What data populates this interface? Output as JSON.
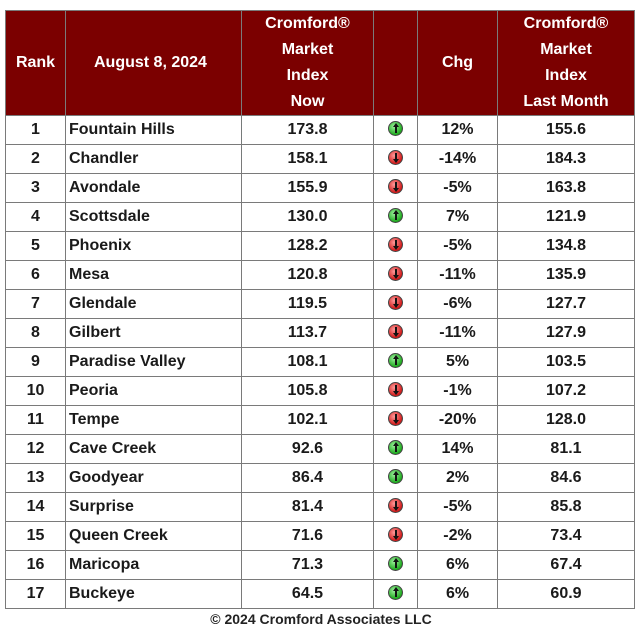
{
  "header": {
    "rank": "Rank",
    "date": "August 8, 2024",
    "now_lines": [
      "Cromford®",
      "Market",
      "Index",
      "Now"
    ],
    "chg": "Chg",
    "last_lines": [
      "Cromford®",
      "Market",
      "Index",
      "Last Month"
    ]
  },
  "rows": [
    {
      "rank": "1",
      "city": "Fountain Hills",
      "now": "173.8",
      "dir": "up",
      "chg": "12%",
      "last": "155.6"
    },
    {
      "rank": "2",
      "city": "Chandler",
      "now": "158.1",
      "dir": "down",
      "chg": "-14%",
      "last": "184.3"
    },
    {
      "rank": "3",
      "city": "Avondale",
      "now": "155.9",
      "dir": "down",
      "chg": "-5%",
      "last": "163.8"
    },
    {
      "rank": "4",
      "city": "Scottsdale",
      "now": "130.0",
      "dir": "up",
      "chg": "7%",
      "last": "121.9"
    },
    {
      "rank": "5",
      "city": "Phoenix",
      "now": "128.2",
      "dir": "down",
      "chg": "-5%",
      "last": "134.8"
    },
    {
      "rank": "6",
      "city": "Mesa",
      "now": "120.8",
      "dir": "down",
      "chg": "-11%",
      "last": "135.9"
    },
    {
      "rank": "7",
      "city": "Glendale",
      "now": "119.5",
      "dir": "down",
      "chg": "-6%",
      "last": "127.7"
    },
    {
      "rank": "8",
      "city": "Gilbert",
      "now": "113.7",
      "dir": "down",
      "chg": "-11%",
      "last": "127.9"
    },
    {
      "rank": "9",
      "city": "Paradise Valley",
      "now": "108.1",
      "dir": "up",
      "chg": "5%",
      "last": "103.5"
    },
    {
      "rank": "10",
      "city": "Peoria",
      "now": "105.8",
      "dir": "down",
      "chg": "-1%",
      "last": "107.2"
    },
    {
      "rank": "11",
      "city": "Tempe",
      "now": "102.1",
      "dir": "down",
      "chg": "-20%",
      "last": "128.0"
    },
    {
      "rank": "12",
      "city": "Cave Creek",
      "now": "92.6",
      "dir": "up",
      "chg": "14%",
      "last": "81.1"
    },
    {
      "rank": "13",
      "city": "Goodyear",
      "now": "86.4",
      "dir": "up",
      "chg": "2%",
      "last": "84.6"
    },
    {
      "rank": "14",
      "city": "Surprise",
      "now": "81.4",
      "dir": "down",
      "chg": "-5%",
      "last": "85.8"
    },
    {
      "rank": "15",
      "city": "Queen Creek",
      "now": "71.6",
      "dir": "down",
      "chg": "-2%",
      "last": "73.4"
    },
    {
      "rank": "16",
      "city": "Maricopa",
      "now": "71.3",
      "dir": "up",
      "chg": "6%",
      "last": "67.4"
    },
    {
      "rank": "17",
      "city": "Buckeye",
      "now": "64.5",
      "dir": "up",
      "chg": "6%",
      "last": "60.9"
    }
  ],
  "footer": "© 2024 Cromford Associates LLC",
  "colors": {
    "header_bg": "#7b0000",
    "up": "#1faa1f",
    "down": "#d21a1a"
  }
}
